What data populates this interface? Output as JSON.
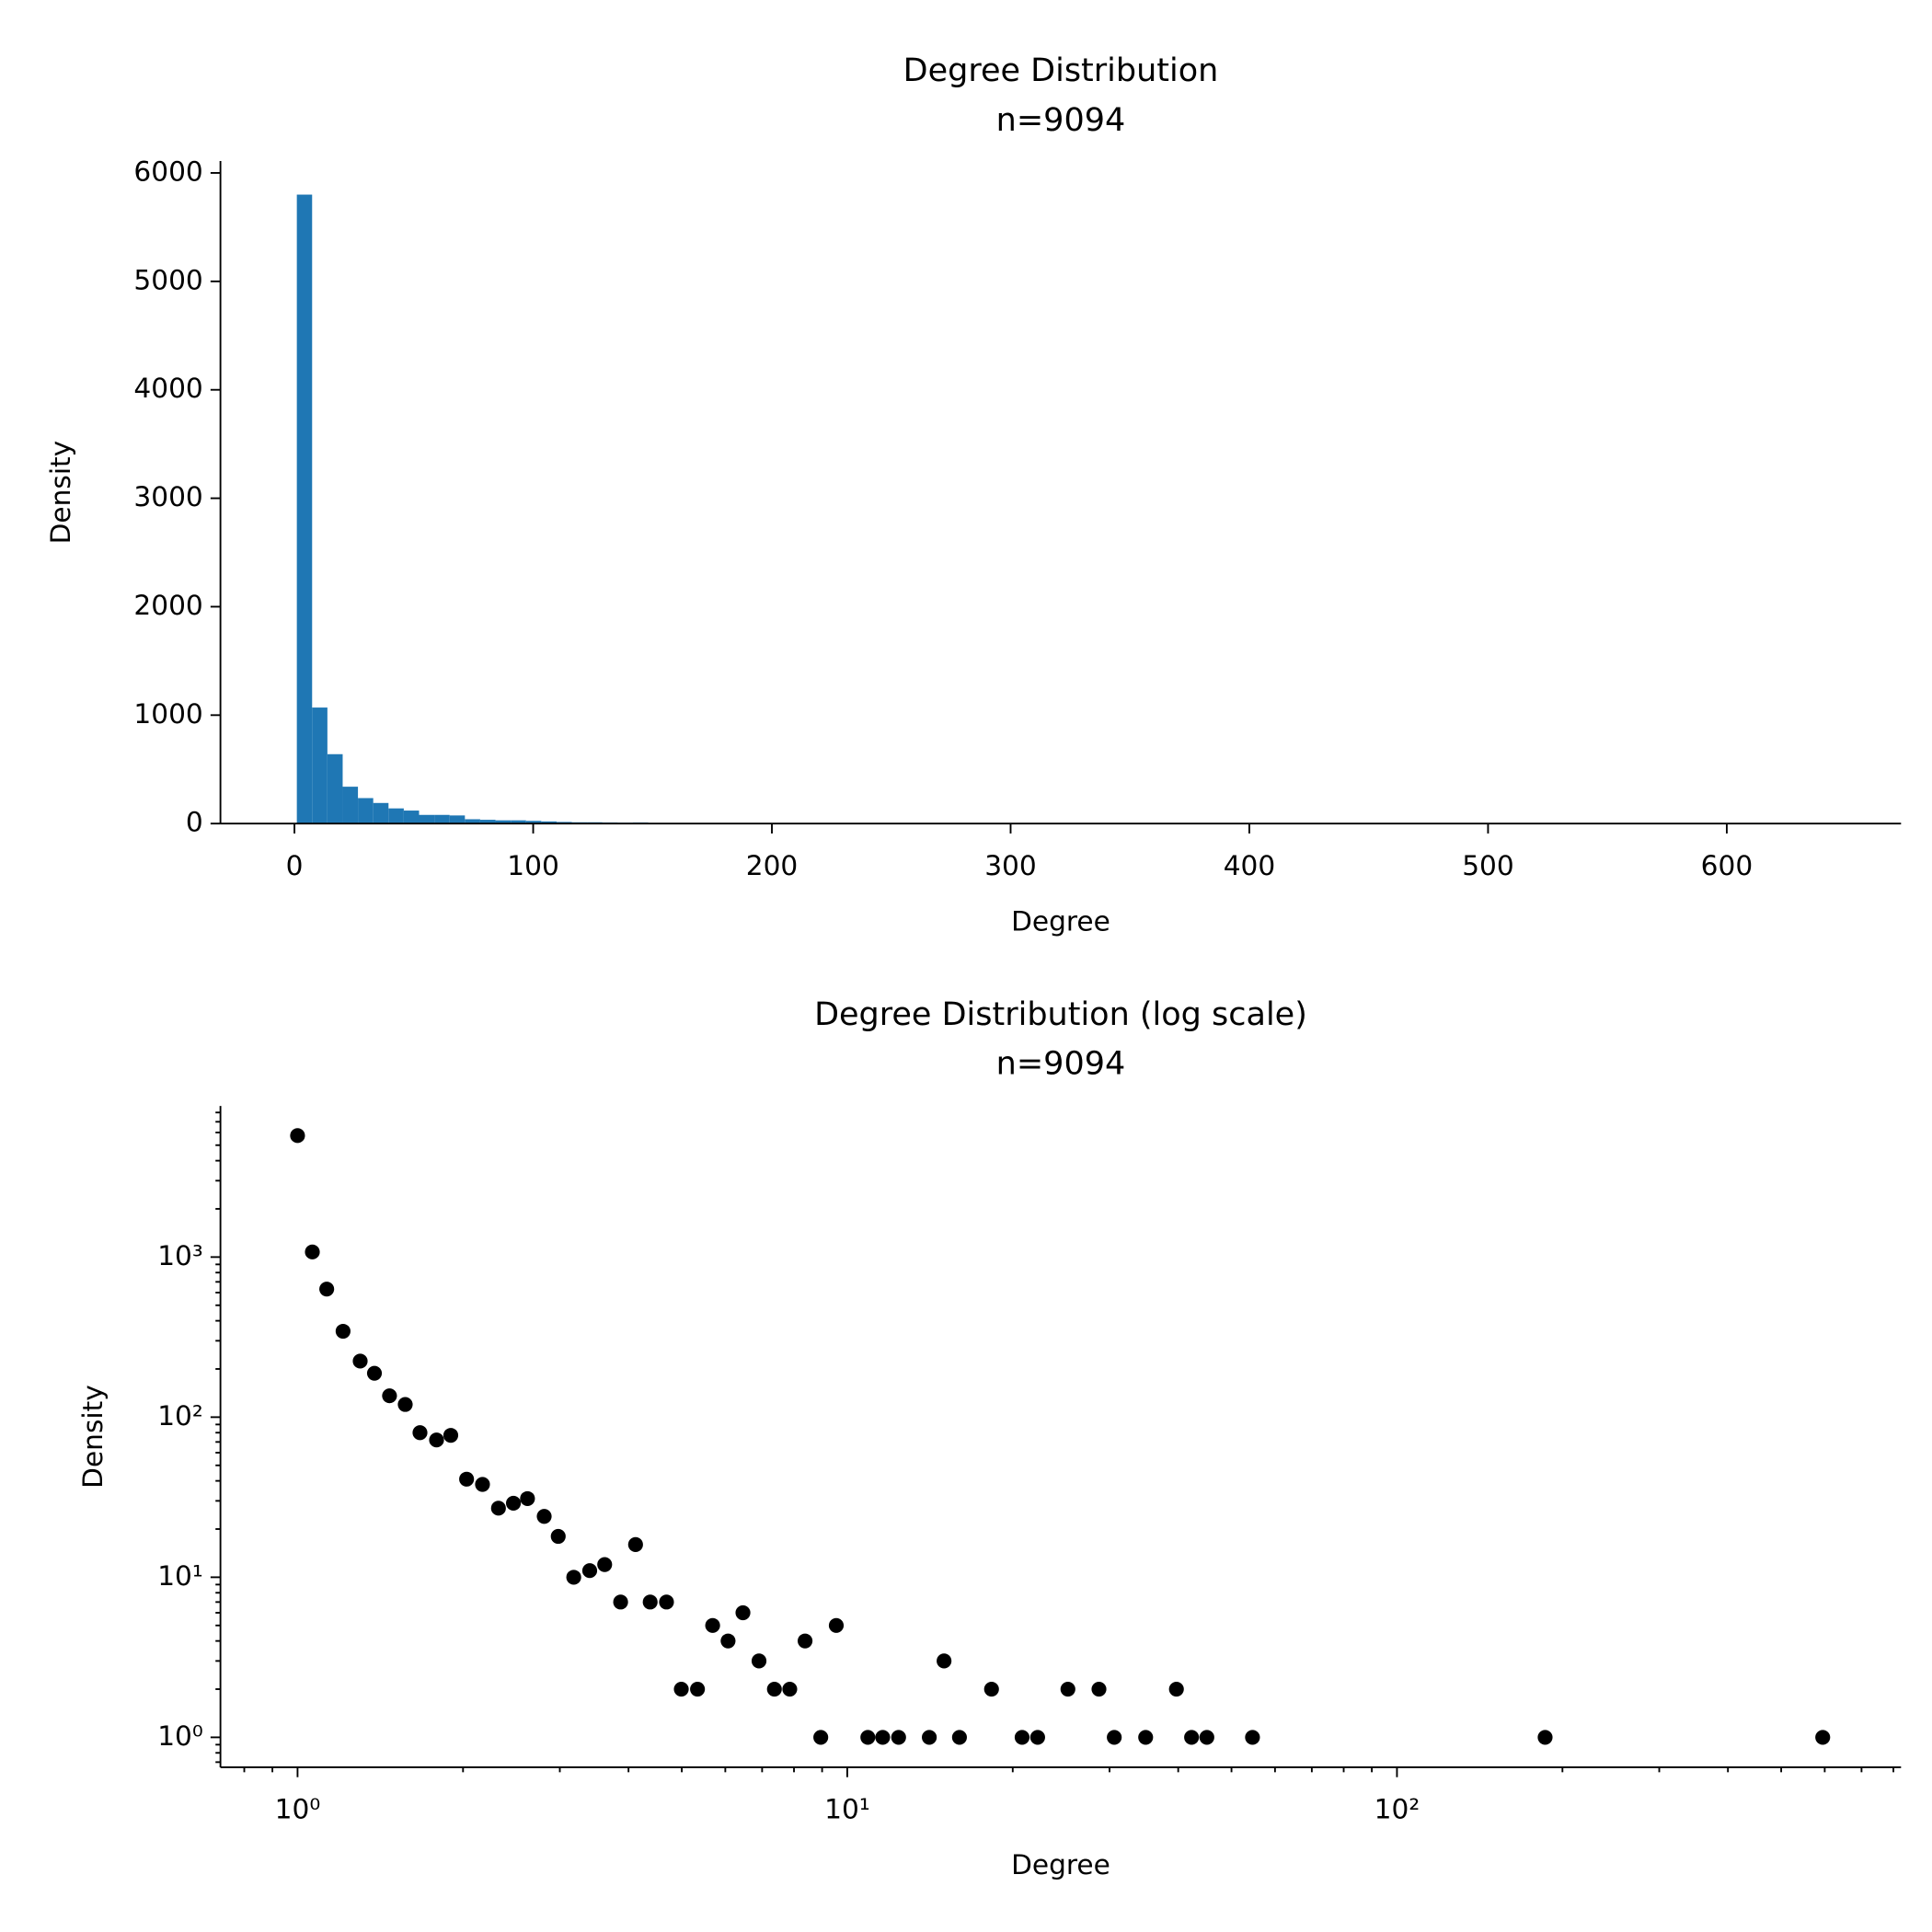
{
  "chart_data": [
    {
      "type": "histogram",
      "title": "Degree Distribution",
      "subtitle": "n=9094",
      "x_label": "Degree",
      "y_label": "Density",
      "color": "#1f77b4",
      "bins": [
        1,
        7.4,
        13.8,
        20.2,
        26.6,
        33,
        39.4,
        45.8,
        52.2,
        58.6,
        65,
        71.4,
        77.8,
        84.2,
        90.6,
        97,
        103.4,
        109.8,
        116.2,
        122.6,
        129,
        135.4,
        141.8,
        148.2,
        154.6,
        161,
        167.4,
        173.8,
        180.2,
        186.6,
        193,
        199.4,
        205.8,
        212.2,
        218.6,
        225,
        231.4,
        237.8,
        244.2,
        250.6,
        257,
        263.4,
        269.8,
        276.2,
        282.6,
        289,
        295.4,
        301.8,
        308.2,
        314.6,
        321,
        327.4,
        333.8,
        340.2,
        346.6,
        353,
        359.4,
        365.8,
        372.2,
        378.6,
        385,
        391.4,
        397.8,
        404.2,
        410.6,
        417,
        423.4,
        429.8,
        436.2,
        442.6,
        449,
        455.4,
        461.8,
        468.2,
        474.6,
        481,
        487.4,
        493.8,
        500.2,
        506.6,
        513,
        519.4,
        525.8,
        532.2,
        538.6,
        545,
        551.4,
        557.8,
        564.2,
        570.6,
        577,
        583.4,
        589.8,
        596.2,
        602.6,
        609,
        615.4,
        621.8,
        628.2,
        634.6,
        641
      ],
      "values": [
        5800,
        1070,
        640,
        340,
        235,
        190,
        140,
        120,
        80,
        80,
        75,
        40,
        35,
        30,
        30,
        25,
        20,
        15,
        12,
        12,
        10,
        8,
        10,
        5,
        0,
        0,
        0,
        0,
        1,
        0,
        0,
        0,
        0,
        0,
        0,
        0,
        0,
        0,
        0,
        0,
        0,
        0,
        0,
        0,
        0,
        0,
        0,
        0,
        0,
        0,
        0,
        0,
        0,
        0,
        0,
        0,
        0,
        0,
        0,
        0,
        0,
        0,
        0,
        0,
        0,
        0,
        0,
        0,
        0,
        0,
        0,
        0,
        0,
        0,
        0,
        0,
        0,
        0,
        0,
        0,
        0,
        0,
        0,
        0,
        0,
        0,
        0,
        0,
        0,
        0,
        0,
        0,
        1,
        0,
        0,
        0,
        0,
        0,
        0,
        0
      ],
      "xlim": [
        -31,
        673
      ],
      "ylim": [
        0,
        6110
      ],
      "xticks": [
        0,
        100,
        200,
        300,
        400,
        500,
        600
      ],
      "yticks": [
        0,
        1000,
        2000,
        3000,
        4000,
        5000,
        6000
      ]
    },
    {
      "type": "scatter",
      "title": "Degree Distribution (log scale)",
      "subtitle": "n=9094",
      "x_label": "Degree",
      "y_label": "Density",
      "color": "#000000",
      "log_x": true,
      "log_y": true,
      "x": [
        1,
        1.064,
        1.13,
        1.21,
        1.3,
        1.38,
        1.47,
        1.57,
        1.67,
        1.79,
        1.9,
        2.03,
        2.17,
        2.32,
        2.47,
        2.62,
        2.81,
        2.98,
        3.18,
        3.4,
        3.62,
        3.87,
        4.12,
        4.38,
        4.69,
        4.99,
        5.34,
        5.69,
        6.07,
        6.46,
        6.91,
        7.37,
        7.86,
        8.38,
        8.95,
        9.55,
        10.9,
        11.6,
        12.4,
        14.1,
        15,
        16,
        18.3,
        20.8,
        22.2,
        25.2,
        28.7,
        30.6,
        34.9,
        39.7,
        42.3,
        45.1,
        54.6,
        186,
        595
      ],
      "values": [
        5740,
        1076,
        631,
        344,
        224,
        188,
        136,
        120,
        80,
        72,
        77,
        41,
        38,
        27,
        29,
        31,
        24,
        18,
        10,
        11,
        12,
        7,
        16,
        7,
        7,
        2,
        2,
        5,
        4,
        6,
        3,
        2,
        2,
        4,
        1,
        5,
        1,
        1,
        1,
        1,
        3,
        1,
        2,
        1,
        1,
        2,
        2,
        1,
        1,
        2,
        1,
        1,
        1,
        1,
        1
      ],
      "xlim": [
        0.724,
        826
      ],
      "ylim": [
        0.65,
        8790
      ],
      "xticks": [
        {
          "value": 1,
          "label": "10⁰"
        },
        {
          "value": 10,
          "label": "10¹"
        },
        {
          "value": 100,
          "label": "10²"
        }
      ],
      "yticks": [
        {
          "value": 1,
          "label": "10⁰"
        },
        {
          "value": 10,
          "label": "10¹"
        },
        {
          "value": 100,
          "label": "10²"
        },
        {
          "value": 1000,
          "label": "10³"
        }
      ],
      "xminorticks": [
        0.8,
        0.9,
        2,
        3,
        4,
        5,
        6,
        7,
        8,
        9,
        20,
        30,
        40,
        50,
        60,
        70,
        80,
        90,
        200,
        300,
        400,
        500,
        600,
        700,
        800
      ],
      "yminorticks": [
        0.7,
        0.8,
        0.9,
        2,
        3,
        4,
        5,
        6,
        7,
        8,
        9,
        20,
        30,
        40,
        50,
        60,
        70,
        80,
        90,
        200,
        300,
        400,
        500,
        600,
        700,
        800,
        900,
        2000,
        3000,
        4000,
        5000,
        6000,
        7000,
        8000
      ]
    }
  ]
}
